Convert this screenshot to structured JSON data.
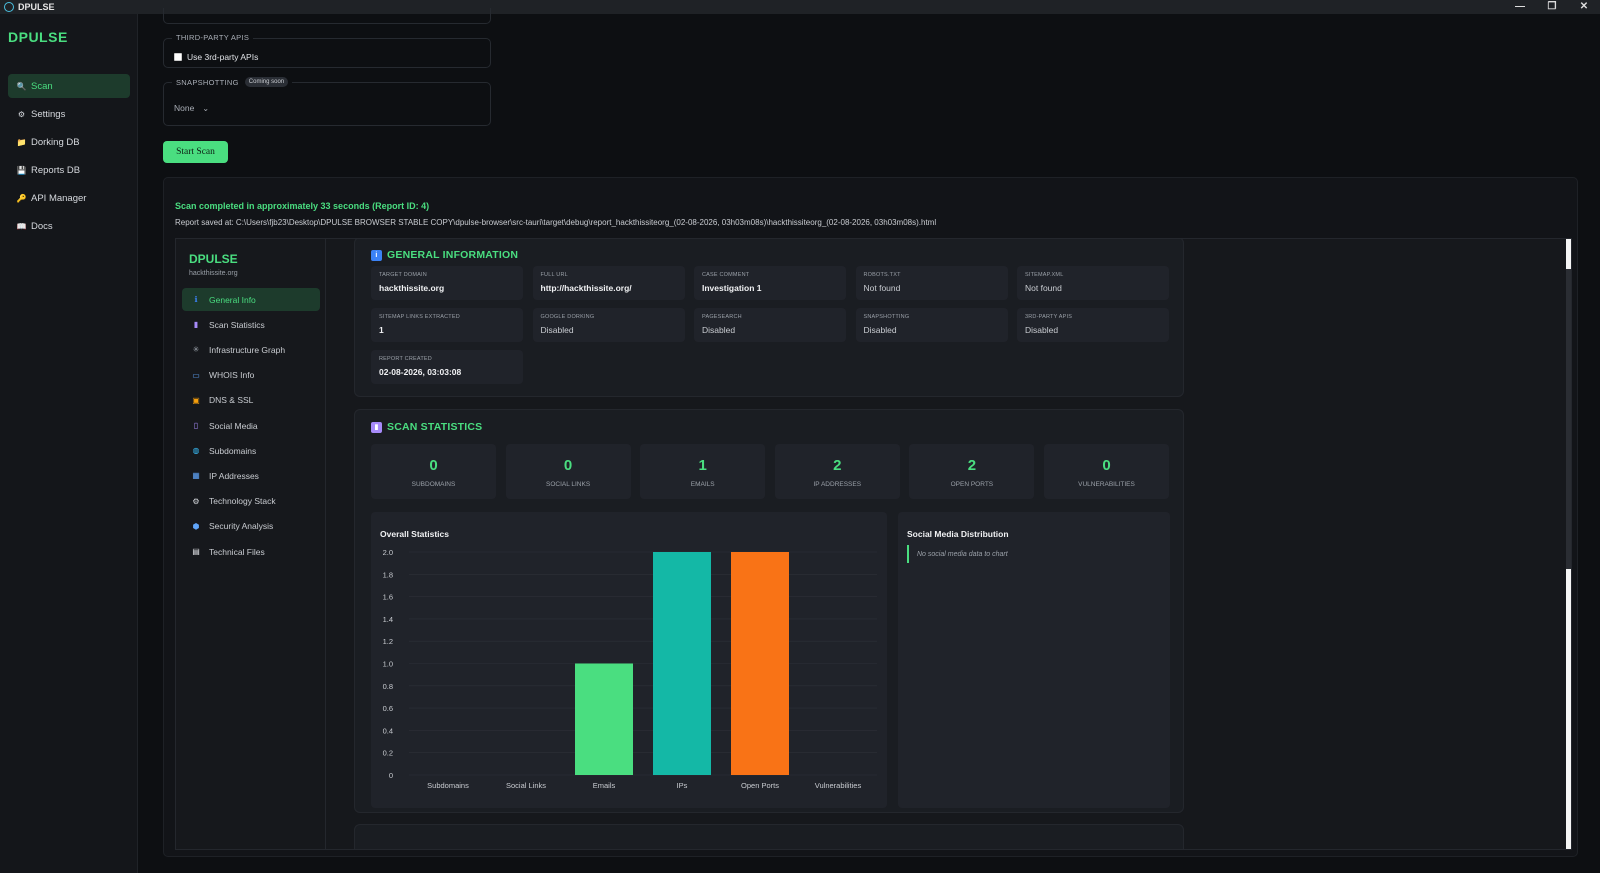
{
  "window": {
    "title": "DPULSE",
    "controls": [
      "—",
      "❐",
      "✕"
    ]
  },
  "sidebar": {
    "brand": "DPULSE",
    "items": [
      {
        "label": "Scan",
        "icon": "magnifier-icon",
        "glyph": "🔍",
        "active": true
      },
      {
        "label": "Settings",
        "icon": "gear-icon",
        "glyph": "⚙"
      },
      {
        "label": "Dorking DB",
        "icon": "folder-icon",
        "glyph": "📁"
      },
      {
        "label": "Reports DB",
        "icon": "floppy-icon",
        "glyph": "💾"
      },
      {
        "label": "API Manager",
        "icon": "key-icon",
        "glyph": "🔑"
      },
      {
        "label": "Docs",
        "icon": "book-icon",
        "glyph": "📖"
      }
    ]
  },
  "form": {
    "third_party_legend": "THIRD-PARTY APIS",
    "third_party_checkbox": "Use 3rd-party APIs",
    "snapshot_legend": "SNAPSHOTTING",
    "snapshot_badge": "Coming soon",
    "snapshot_value": "None",
    "start_button": "Start Scan"
  },
  "results": {
    "status": "Scan completed in approximately 33 seconds (Report ID: 4)",
    "path": "Report saved at: C:\\Users\\fjb23\\Desktop\\DPULSE BROWSER STABLE COPY\\dpulse-browser\\src-tauri\\target\\debug\\report_hackthissiteorg_(02-08-2026, 03h03m08s)\\hackthissiteorg_(02-08-2026, 03h03m08s).html"
  },
  "report": {
    "brand": "DPULSE",
    "domain": "hackthissite.org",
    "nav": [
      {
        "label": "General Info",
        "icon": "info-icon",
        "glyph": "ℹ",
        "color": "#3b82f6",
        "active": true
      },
      {
        "label": "Scan Statistics",
        "icon": "bar-chart-icon",
        "glyph": "▮",
        "color": "#a78bfa"
      },
      {
        "label": "Infrastructure Graph",
        "icon": "network-icon",
        "glyph": "✳",
        "color": "#9aa0a8"
      },
      {
        "label": "WHOIS Info",
        "icon": "id-card-icon",
        "glyph": "▭",
        "color": "#60a5fa"
      },
      {
        "label": "DNS & SSL",
        "icon": "lock-icon",
        "glyph": "▣",
        "color": "#f59e0b"
      },
      {
        "label": "Social Media",
        "icon": "phone-icon",
        "glyph": "▯",
        "color": "#a78bfa"
      },
      {
        "label": "Subdomains",
        "icon": "globe-icon",
        "glyph": "◍",
        "color": "#38bdf8"
      },
      {
        "label": "IP Addresses",
        "icon": "numbers-icon",
        "glyph": "▦",
        "color": "#60a5fa"
      },
      {
        "label": "Technology Stack",
        "icon": "gear-icon",
        "glyph": "⚙",
        "color": "#d6d9de"
      },
      {
        "label": "Security Analysis",
        "icon": "shield-icon",
        "glyph": "⬢",
        "color": "#60a5fa"
      },
      {
        "label": "Technical Files",
        "icon": "file-icon",
        "glyph": "▤",
        "color": "#e5e7eb"
      }
    ],
    "general": {
      "title": "GENERAL INFORMATION",
      "fields": [
        {
          "label": "TARGET DOMAIN",
          "value": "hackthissite.org",
          "bold": true
        },
        {
          "label": "FULL URL",
          "value": "http://hackthissite.org/",
          "bold": true
        },
        {
          "label": "CASE COMMENT",
          "value": "Investigation 1",
          "bold": true
        },
        {
          "label": "ROBOTS.TXT",
          "value": "Not found"
        },
        {
          "label": "SITEMAP.XML",
          "value": "Not found"
        },
        {
          "label": "SITEMAP LINKS EXTRACTED",
          "value": "1",
          "bold": true
        },
        {
          "label": "GOOGLE DORKING",
          "value": "Disabled"
        },
        {
          "label": "PAGESEARCH",
          "value": "Disabled"
        },
        {
          "label": "SNAPSHOTTING",
          "value": "Disabled"
        },
        {
          "label": "3RD-PARTY APIS",
          "value": "Disabled"
        },
        {
          "label": "REPORT CREATED",
          "value": "02-08-2026, 03:03:08",
          "bold": true
        }
      ]
    },
    "stats": {
      "title": "SCAN STATISTICS",
      "boxes": [
        {
          "value": "0",
          "label": "SUBDOMAINS"
        },
        {
          "value": "0",
          "label": "SOCIAL LINKS"
        },
        {
          "value": "1",
          "label": "EMAILS"
        },
        {
          "value": "2",
          "label": "IP ADDRESSES"
        },
        {
          "value": "2",
          "label": "OPEN PORTS"
        },
        {
          "value": "0",
          "label": "VULNERABILITIES"
        }
      ],
      "overall_title": "Overall Statistics",
      "social_title": "Social Media Distribution",
      "social_note": "No social media data to chart"
    }
  },
  "chart_data": {
    "type": "bar",
    "title": "Overall Statistics",
    "categories": [
      "Subdomains",
      "Social Links",
      "Emails",
      "IPs",
      "Open Ports",
      "Vulnerabilities"
    ],
    "values": [
      0,
      0,
      1,
      2,
      2,
      0
    ],
    "colors": [
      "#4ade80",
      "#4ade80",
      "#4ade80",
      "#14b8a6",
      "#f97316",
      "#4ade80"
    ],
    "ylim": [
      0,
      2
    ],
    "yticks": [
      "0",
      "0.2",
      "0.4",
      "0.6",
      "0.8",
      "1.0",
      "1.2",
      "1.4",
      "1.6",
      "1.8",
      "2.0"
    ],
    "grid": true,
    "xlabel": "",
    "ylabel": ""
  }
}
